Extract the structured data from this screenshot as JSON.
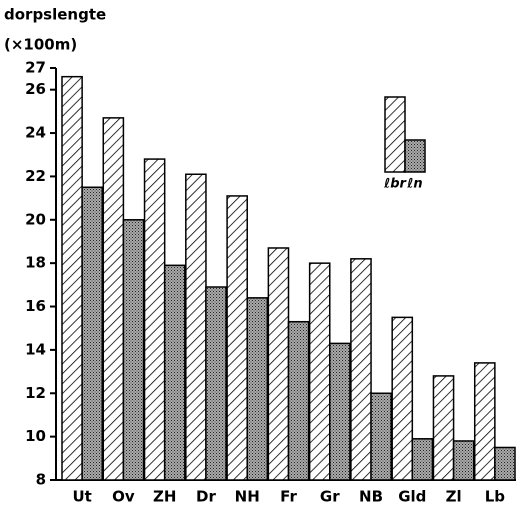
{
  "chart_data": {
    "type": "bar",
    "title": "dorpslengte",
    "y_label": "(×100m)",
    "categories": [
      "Ut",
      "Ov",
      "ZH",
      "Dr",
      "NH",
      "Fr",
      "Gr",
      "NB",
      "Gld",
      "Zl",
      "Lb"
    ],
    "series": [
      {
        "name": "ℓbr",
        "color": "#000000",
        "fill": "hatched",
        "values": [
          26.6,
          24.7,
          22.8,
          22.1,
          21.1,
          18.7,
          18.0,
          18.2,
          15.5,
          12.8,
          13.4
        ]
      },
      {
        "name": "ℓn",
        "color": "#000000",
        "fill": "dotted",
        "values": [
          21.5,
          20.0,
          17.9,
          16.9,
          16.4,
          15.3,
          14.3,
          12.0,
          9.9,
          9.8,
          9.5
        ]
      }
    ],
    "ylim": [
      8,
      27
    ],
    "yticks": [
      8,
      10,
      12,
      14,
      16,
      18,
      20,
      22,
      24,
      26,
      27
    ],
    "legend": "upper right"
  }
}
